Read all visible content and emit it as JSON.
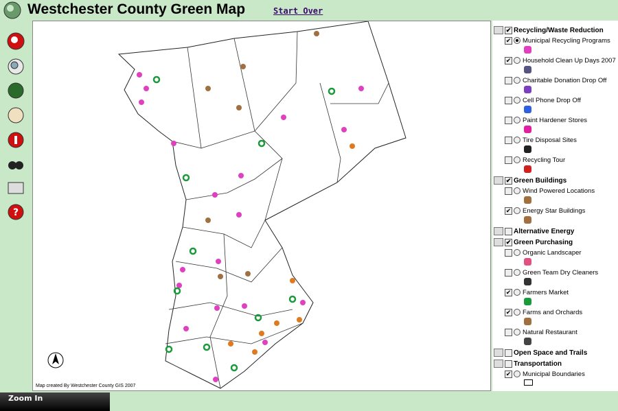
{
  "header": {
    "title": "Westchester County Green Map",
    "start_over": "Start Over"
  },
  "map": {
    "credit": "Map created By Westchester County GIS 2007"
  },
  "status": {
    "tool": "Zoom In"
  },
  "layers": [
    {
      "label": "Recycling/Waste Reduction",
      "group": true,
      "checked": true
    },
    {
      "label": "Municipal Recycling Programs",
      "checked": true,
      "selected": true
    },
    {
      "label": "Household Clean Up Days 2007",
      "checked": true
    },
    {
      "label": "Charitable Donation Drop Off",
      "checked": false
    },
    {
      "label": "Cell Phone Drop Off",
      "checked": false
    },
    {
      "label": "Paint Hardener Stores",
      "checked": false
    },
    {
      "label": "Tire Disposal Sites",
      "checked": false
    },
    {
      "label": "Recycling Tour",
      "checked": false
    },
    {
      "label": "Green Buildings",
      "group": true,
      "checked": true
    },
    {
      "label": "Wind Powered Locations",
      "checked": false
    },
    {
      "label": "Energy Star Buildings",
      "checked": true
    },
    {
      "label": "Alternative Energy",
      "group": true,
      "checked": false
    },
    {
      "label": "Green Purchasing",
      "group": true,
      "checked": true
    },
    {
      "label": "Organic Landscaper",
      "checked": false
    },
    {
      "label": "Green Team Dry Cleaners",
      "checked": false
    },
    {
      "label": "Farmers Market",
      "checked": true
    },
    {
      "label": "Farms and Orchards",
      "checked": true
    },
    {
      "label": "Natural Restaurant",
      "checked": false
    },
    {
      "label": "Open Space and Trails",
      "group": true,
      "checked": false
    },
    {
      "label": "Transportation",
      "group": true,
      "checked": false
    },
    {
      "label": "Municipal Boundaries",
      "checked": true,
      "last": true
    }
  ]
}
